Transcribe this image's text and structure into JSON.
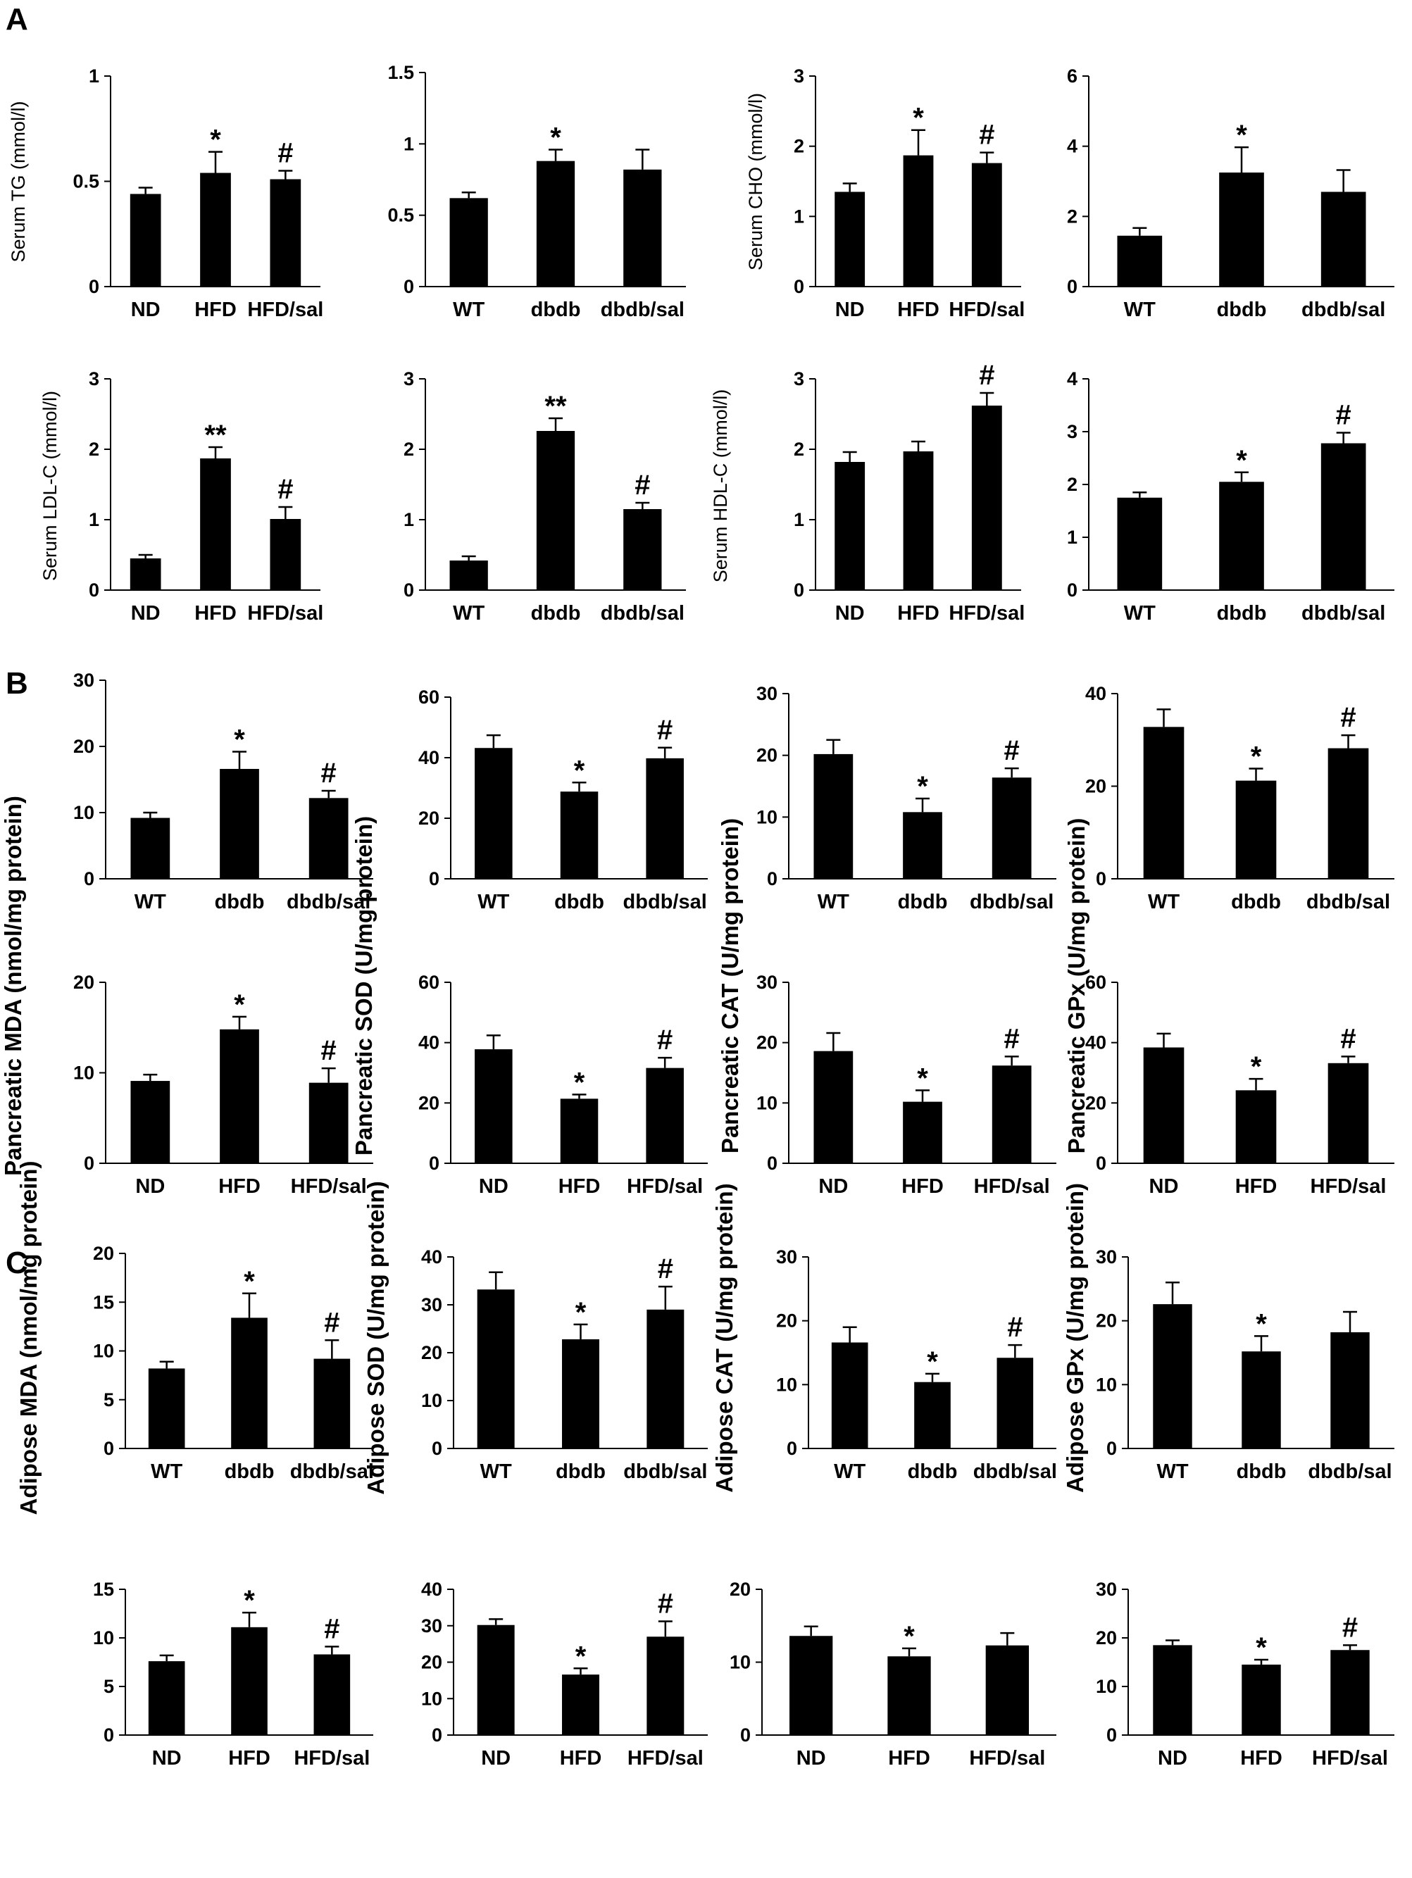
{
  "panels": [
    "A",
    "B",
    "C"
  ],
  "chart_data": [
    {
      "type": "bar",
      "panel": "A",
      "ylabel": "Serum TG (mmol/l)",
      "ylim": [
        0,
        1
      ],
      "yticks": [
        "0",
        "0.5",
        "1"
      ],
      "categories": [
        "ND",
        "HFD",
        "HFD/sal"
      ],
      "values": [
        0.44,
        0.54,
        0.51
      ],
      "errors": [
        0.03,
        0.1,
        0.04
      ],
      "significance": [
        "",
        "*",
        "#"
      ]
    },
    {
      "type": "bar",
      "panel": "A",
      "ylabel": "",
      "ylim": [
        0,
        1.5
      ],
      "yticks": [
        "0",
        "0.5",
        "1",
        "1.5"
      ],
      "categories": [
        "WT",
        "dbdb",
        "dbdb/sal"
      ],
      "values": [
        0.62,
        0.88,
        0.82
      ],
      "errors": [
        0.04,
        0.08,
        0.14
      ],
      "significance": [
        "",
        "*",
        ""
      ]
    },
    {
      "type": "bar",
      "panel": "A",
      "ylabel": "Serum CHO (mmol/l)",
      "ylim": [
        0,
        3
      ],
      "yticks": [
        "0",
        "1",
        "2",
        "3"
      ],
      "categories": [
        "ND",
        "HFD",
        "HFD/sal"
      ],
      "values": [
        1.35,
        1.87,
        1.76
      ],
      "errors": [
        0.12,
        0.36,
        0.15
      ],
      "significance": [
        "",
        "*",
        "#"
      ]
    },
    {
      "type": "bar",
      "panel": "A",
      "ylabel": "",
      "ylim": [
        0,
        6
      ],
      "yticks": [
        "0",
        "2",
        "4",
        "6"
      ],
      "categories": [
        "WT",
        "dbdb",
        "dbdb/sal"
      ],
      "values": [
        1.45,
        3.25,
        2.7
      ],
      "errors": [
        0.22,
        0.72,
        0.62
      ],
      "significance": [
        "",
        "*",
        ""
      ]
    },
    {
      "type": "bar",
      "panel": "A",
      "ylabel": "Serum LDL-C (mmol/l)",
      "ylim": [
        0,
        3
      ],
      "yticks": [
        "0",
        "1",
        "2",
        "3"
      ],
      "categories": [
        "ND",
        "HFD",
        "HFD/sal"
      ],
      "values": [
        0.45,
        1.87,
        1.01
      ],
      "errors": [
        0.05,
        0.16,
        0.17
      ],
      "significance": [
        "",
        "**",
        "#"
      ]
    },
    {
      "type": "bar",
      "panel": "A",
      "ylabel": "",
      "ylim": [
        0,
        3
      ],
      "yticks": [
        "0",
        "1",
        "2",
        "3"
      ],
      "categories": [
        "WT",
        "dbdb",
        "dbdb/sal"
      ],
      "values": [
        0.42,
        2.26,
        1.15
      ],
      "errors": [
        0.06,
        0.18,
        0.09
      ],
      "significance": [
        "",
        "**",
        "#"
      ]
    },
    {
      "type": "bar",
      "panel": "A",
      "ylabel": "Serum HDL-C (mmol/l)",
      "ylim": [
        0,
        3
      ],
      "yticks": [
        "0",
        "1",
        "2",
        "3"
      ],
      "categories": [
        "ND",
        "HFD",
        "HFD/sal"
      ],
      "values": [
        1.82,
        1.97,
        2.62
      ],
      "errors": [
        0.14,
        0.14,
        0.18
      ],
      "significance": [
        "",
        "",
        "#"
      ]
    },
    {
      "type": "bar",
      "panel": "A",
      "ylabel": "",
      "ylim": [
        0,
        4
      ],
      "yticks": [
        "0",
        "1",
        "2",
        "3",
        "4"
      ],
      "categories": [
        "WT",
        "dbdb",
        "dbdb/sal"
      ],
      "values": [
        1.75,
        2.05,
        2.78
      ],
      "errors": [
        0.1,
        0.18,
        0.2
      ],
      "significance": [
        "",
        "*",
        "#"
      ]
    },
    {
      "type": "bar",
      "panel": "B",
      "ylabel": "",
      "ylim": [
        0,
        30
      ],
      "yticks": [
        "0",
        "10",
        "20",
        "30"
      ],
      "categories": [
        "WT",
        "dbdb",
        "dbdb/sal"
      ],
      "values": [
        9.2,
        16.6,
        12.2
      ],
      "errors": [
        0.8,
        2.6,
        1.1
      ],
      "significance": [
        "",
        "*",
        "#"
      ]
    },
    {
      "type": "bar",
      "panel": "B",
      "ylabel": "",
      "ylim": [
        0,
        60
      ],
      "yticks": [
        "0",
        "20",
        "40",
        "60"
      ],
      "categories": [
        "WT",
        "dbdb",
        "dbdb/sal"
      ],
      "values": [
        43.2,
        28.8,
        39.8
      ],
      "errors": [
        4.2,
        3.0,
        3.5
      ],
      "significance": [
        "",
        "*",
        "#"
      ]
    },
    {
      "type": "bar",
      "panel": "B",
      "ylabel": "",
      "ylim": [
        0,
        30
      ],
      "yticks": [
        "0",
        "10",
        "20",
        "30"
      ],
      "categories": [
        "WT",
        "dbdb",
        "dbdb/sal"
      ],
      "values": [
        20.2,
        10.8,
        16.4
      ],
      "errors": [
        2.3,
        2.2,
        1.5
      ],
      "significance": [
        "",
        "*",
        "#"
      ]
    },
    {
      "type": "bar",
      "panel": "B",
      "ylabel": "",
      "ylim": [
        0,
        40
      ],
      "yticks": [
        "0",
        "20",
        "40"
      ],
      "categories": [
        "WT",
        "dbdb",
        "dbdb/sal"
      ],
      "values": [
        32.8,
        21.2,
        28.2
      ],
      "errors": [
        3.8,
        2.6,
        2.8
      ],
      "significance": [
        "",
        "*",
        "#"
      ]
    },
    {
      "type": "bar",
      "panel": "B",
      "ylabel": "Pancreatic MDA (nmol/mg protein)",
      "ylim": [
        0,
        20
      ],
      "yticks": [
        "0",
        "10",
        "20"
      ],
      "categories": [
        "ND",
        "HFD",
        "HFD/sal"
      ],
      "values": [
        9.1,
        14.8,
        8.9
      ],
      "errors": [
        0.7,
        1.4,
        1.6
      ],
      "significance": [
        "",
        "*",
        "#"
      ]
    },
    {
      "type": "bar",
      "panel": "B",
      "ylabel": "Pancreatic SOD (U/mg protein)",
      "ylim": [
        0,
        60
      ],
      "yticks": [
        "0",
        "20",
        "40",
        "60"
      ],
      "categories": [
        "ND",
        "HFD",
        "HFD/sal"
      ],
      "values": [
        37.8,
        21.4,
        31.6
      ],
      "errors": [
        4.6,
        1.4,
        3.4
      ],
      "significance": [
        "",
        "*",
        "#"
      ]
    },
    {
      "type": "bar",
      "panel": "B",
      "ylabel": "Pancreatic  CAT (U/mg protein)",
      "ylim": [
        0,
        30
      ],
      "yticks": [
        "0",
        "10",
        "20",
        "30"
      ],
      "categories": [
        "ND",
        "HFD",
        "HFD/sal"
      ],
      "values": [
        18.6,
        10.2,
        16.2
      ],
      "errors": [
        3.0,
        1.9,
        1.5
      ],
      "significance": [
        "",
        "*",
        "#"
      ]
    },
    {
      "type": "bar",
      "panel": "B",
      "ylabel": "Pancreatic GPx (U/mg protein)",
      "ylim": [
        0,
        60
      ],
      "yticks": [
        "0",
        "20",
        "40",
        "60"
      ],
      "categories": [
        "ND",
        "HFD",
        "HFD/sal"
      ],
      "values": [
        38.4,
        24.2,
        33.2
      ],
      "errors": [
        4.6,
        3.8,
        2.2
      ],
      "significance": [
        "",
        "*",
        "#"
      ]
    },
    {
      "type": "bar",
      "panel": "C",
      "ylabel": "",
      "ylim": [
        0,
        20
      ],
      "yticks": [
        "0",
        "5",
        "10",
        "15",
        "20"
      ],
      "categories": [
        "WT",
        "dbdb",
        "dbdb/sal"
      ],
      "values": [
        8.2,
        13.4,
        9.2
      ],
      "errors": [
        0.7,
        2.5,
        1.9
      ],
      "significance": [
        "",
        "*",
        "#"
      ]
    },
    {
      "type": "bar",
      "panel": "C",
      "ylabel": "",
      "ylim": [
        0,
        40
      ],
      "yticks": [
        "0",
        "10",
        "20",
        "30",
        "40"
      ],
      "categories": [
        "WT",
        "dbdb",
        "dbdb/sal"
      ],
      "values": [
        33.2,
        22.8,
        29.0
      ],
      "errors": [
        3.6,
        3.1,
        4.8
      ],
      "significance": [
        "",
        "*",
        "#"
      ]
    },
    {
      "type": "bar",
      "panel": "C",
      "ylabel": "",
      "ylim": [
        0,
        30
      ],
      "yticks": [
        "0",
        "10",
        "20",
        "30"
      ],
      "categories": [
        "WT",
        "dbdb",
        "dbdb/sal"
      ],
      "values": [
        16.6,
        10.4,
        14.2
      ],
      "errors": [
        2.4,
        1.3,
        2.0
      ],
      "significance": [
        "",
        "*",
        "#"
      ]
    },
    {
      "type": "bar",
      "panel": "C",
      "ylabel": "",
      "ylim": [
        0,
        30
      ],
      "yticks": [
        "0",
        "10",
        "20",
        "30"
      ],
      "categories": [
        "WT",
        "dbdb",
        "dbdb/sal"
      ],
      "values": [
        22.6,
        15.2,
        18.2
      ],
      "errors": [
        3.4,
        2.4,
        3.2
      ],
      "significance": [
        "",
        "*",
        ""
      ]
    },
    {
      "type": "bar",
      "panel": "C",
      "ylabel": "Adipose  MDA (nmol/mg protein)",
      "ylim": [
        0,
        15
      ],
      "yticks": [
        "0",
        "5",
        "10",
        "15"
      ],
      "categories": [
        "ND",
        "HFD",
        "HFD/sal"
      ],
      "values": [
        7.6,
        11.1,
        8.3
      ],
      "errors": [
        0.6,
        1.5,
        0.8
      ],
      "significance": [
        "",
        "*",
        "#"
      ]
    },
    {
      "type": "bar",
      "panel": "C",
      "ylabel": "Adipose  SOD (U/mg protein)",
      "ylim": [
        0,
        40
      ],
      "yticks": [
        "0",
        "10",
        "20",
        "30",
        "40"
      ],
      "categories": [
        "ND",
        "HFD",
        "HFD/sal"
      ],
      "values": [
        30.2,
        16.6,
        27.0
      ],
      "errors": [
        1.6,
        1.7,
        4.2
      ],
      "significance": [
        "",
        "*",
        "#"
      ]
    },
    {
      "type": "bar",
      "panel": "C",
      "ylabel": "Adipose  CAT (U/mg protein)",
      "ylim": [
        0,
        20
      ],
      "yticks": [
        "0",
        "10",
        "20"
      ],
      "categories": [
        "ND",
        "HFD",
        "HFD/sal"
      ],
      "values": [
        13.6,
        10.8,
        12.3
      ],
      "errors": [
        1.3,
        1.1,
        1.7
      ],
      "significance": [
        "",
        "*",
        ""
      ]
    },
    {
      "type": "bar",
      "panel": "C",
      "ylabel": "Adipose  GPx (U/mg protein)",
      "ylim": [
        0,
        30
      ],
      "yticks": [
        "0",
        "10",
        "20",
        "30"
      ],
      "categories": [
        "ND",
        "HFD",
        "HFD/sal"
      ],
      "values": [
        18.5,
        14.5,
        17.5
      ],
      "errors": [
        1.0,
        1.0,
        1.0
      ],
      "significance": [
        "",
        "*",
        "#"
      ]
    }
  ]
}
